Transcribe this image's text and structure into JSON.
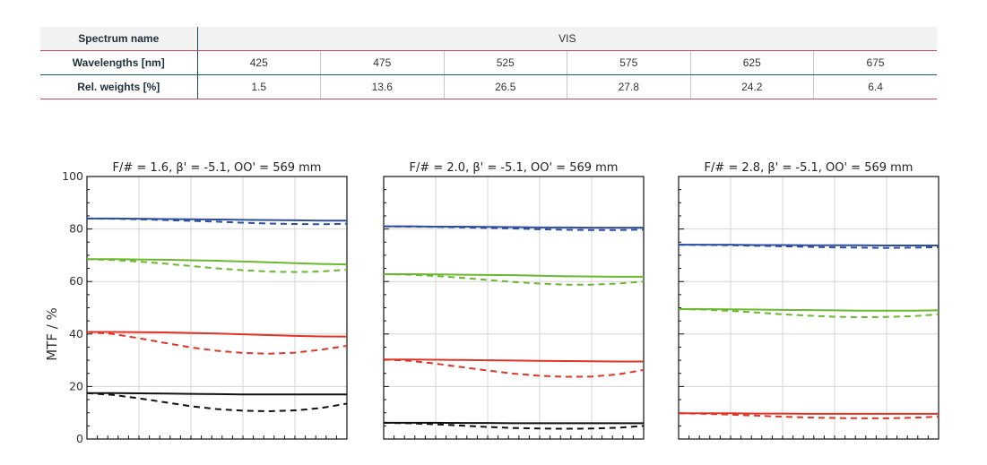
{
  "table": {
    "spectrum_header": "Spectrum name",
    "spectrum_value": "VIS",
    "wavelengths_header": "Wavelengths [nm]",
    "weights_header": "Rel. weights [%]",
    "wavelengths": [
      "425",
      "475",
      "525",
      "575",
      "625",
      "675"
    ],
    "weights": [
      "1.5",
      "13.6",
      "26.5",
      "27.8",
      "24.2",
      "6.4"
    ]
  },
  "chart_data": {
    "type": "line",
    "ylabel": "MTF / %",
    "ylim": [
      0,
      100
    ],
    "yticks": [
      "0",
      "20",
      "40",
      "60",
      "80",
      "100"
    ],
    "xlim": [
      0,
      1
    ],
    "grid": true,
    "series_colors": {
      "blue": "#2e4ea0",
      "green": "#6ab82e",
      "red": "#e03426",
      "black": "#111111"
    },
    "panels": [
      {
        "title": "F/# = 1.6, β' = -5.1, OO' = 569 mm",
        "x": [
          0,
          0.1,
          0.2,
          0.3,
          0.4,
          0.5,
          0.6,
          0.7,
          0.8,
          0.9,
          1.0
        ],
        "series": [
          {
            "color": "blue",
            "style": "solid",
            "values": [
              84.0,
              84.0,
              83.9,
              83.8,
              83.7,
              83.6,
              83.5,
              83.4,
              83.3,
              83.2,
              83.2
            ]
          },
          {
            "color": "blue",
            "style": "dashed",
            "values": [
              84.0,
              83.9,
              83.7,
              83.4,
              83.1,
              82.8,
              82.4,
              82.1,
              81.9,
              81.8,
              82.0
            ]
          },
          {
            "color": "green",
            "style": "solid",
            "values": [
              68.5,
              68.5,
              68.4,
              68.3,
              68.1,
              67.9,
              67.6,
              67.3,
              67.0,
              66.7,
              66.5
            ]
          },
          {
            "color": "green",
            "style": "dashed",
            "values": [
              68.5,
              68.2,
              67.6,
              66.8,
              65.9,
              65.0,
              64.3,
              63.8,
              63.6,
              63.8,
              64.5
            ]
          },
          {
            "color": "red",
            "style": "solid",
            "values": [
              40.8,
              40.8,
              40.7,
              40.6,
              40.4,
              40.2,
              39.9,
              39.6,
              39.3,
              39.1,
              39.0
            ]
          },
          {
            "color": "red",
            "style": "dashed",
            "values": [
              40.8,
              40.0,
              38.4,
              36.6,
              34.9,
              33.6,
              32.8,
              32.5,
              32.9,
              34.0,
              35.5
            ]
          },
          {
            "color": "black",
            "style": "solid",
            "values": [
              17.5,
              17.5,
              17.4,
              17.3,
              17.2,
              17.1,
              17.0,
              17.0,
              17.0,
              17.0,
              17.0
            ]
          },
          {
            "color": "black",
            "style": "dashed",
            "values": [
              17.5,
              16.8,
              15.5,
              14.0,
              12.5,
              11.4,
              10.8,
              10.6,
              10.9,
              11.8,
              13.5
            ]
          }
        ]
      },
      {
        "title": "F/# = 2.0, β' = -5.1, OO' = 569 mm",
        "x": [
          0,
          0.1,
          0.2,
          0.3,
          0.4,
          0.5,
          0.6,
          0.7,
          0.8,
          0.9,
          1.0
        ],
        "series": [
          {
            "color": "blue",
            "style": "solid",
            "values": [
              81.0,
              81.0,
              80.9,
              80.9,
              80.8,
              80.7,
              80.6,
              80.6,
              80.5,
              80.5,
              80.5
            ]
          },
          {
            "color": "blue",
            "style": "dashed",
            "values": [
              81.0,
              80.9,
              80.8,
              80.6,
              80.4,
              80.2,
              79.9,
              79.7,
              79.6,
              79.6,
              79.8
            ]
          },
          {
            "color": "green",
            "style": "solid",
            "values": [
              62.8,
              62.8,
              62.7,
              62.6,
              62.5,
              62.4,
              62.2,
              62.0,
              61.9,
              61.8,
              61.8
            ]
          },
          {
            "color": "green",
            "style": "dashed",
            "values": [
              62.8,
              62.6,
              62.1,
              61.4,
              60.6,
              59.8,
              59.2,
              58.8,
              58.8,
              59.2,
              60.0
            ]
          },
          {
            "color": "red",
            "style": "solid",
            "values": [
              30.3,
              30.3,
              30.2,
              30.1,
              30.0,
              29.9,
              29.8,
              29.7,
              29.6,
              29.5,
              29.5
            ]
          },
          {
            "color": "red",
            "style": "dashed",
            "values": [
              30.3,
              29.8,
              28.7,
              27.4,
              26.1,
              24.9,
              24.1,
              23.7,
              23.8,
              24.6,
              26.3
            ]
          },
          {
            "color": "black",
            "style": "solid",
            "values": [
              6.2,
              6.2,
              6.2,
              6.1,
              6.1,
              6.0,
              6.0,
              6.0,
              6.0,
              6.0,
              6.0
            ]
          },
          {
            "color": "black",
            "style": "dashed",
            "values": [
              6.2,
              6.0,
              5.6,
              5.1,
              4.6,
              4.2,
              4.0,
              3.9,
              4.0,
              4.3,
              5.0
            ]
          }
        ]
      },
      {
        "title": "F/# = 2.8, β' = -5.1, OO' = 569 mm",
        "x": [
          0,
          0.1,
          0.2,
          0.3,
          0.4,
          0.5,
          0.6,
          0.7,
          0.8,
          0.9,
          1.0
        ],
        "series": [
          {
            "color": "blue",
            "style": "solid",
            "values": [
              74.0,
              74.0,
              74.0,
              73.9,
              73.9,
              73.8,
              73.8,
              73.8,
              73.7,
              73.7,
              73.7
            ]
          },
          {
            "color": "blue",
            "style": "dashed",
            "values": [
              74.0,
              73.9,
              73.8,
              73.6,
              73.4,
              73.2,
              73.0,
              72.9,
              72.8,
              72.9,
              73.1
            ]
          },
          {
            "color": "green",
            "style": "solid",
            "values": [
              49.5,
              49.5,
              49.4,
              49.3,
              49.2,
              49.1,
              49.0,
              48.9,
              48.9,
              48.9,
              49.0
            ]
          },
          {
            "color": "green",
            "style": "dashed",
            "values": [
              49.5,
              49.3,
              48.8,
              48.2,
              47.5,
              47.0,
              46.6,
              46.4,
              46.5,
              46.8,
              47.5
            ]
          },
          {
            "color": "red",
            "style": "solid",
            "values": [
              9.8,
              9.8,
              9.8,
              9.7,
              9.7,
              9.6,
              9.6,
              9.6,
              9.6,
              9.6,
              9.6
            ]
          },
          {
            "color": "red",
            "style": "dashed",
            "values": [
              9.8,
              9.6,
              9.3,
              8.9,
              8.5,
              8.2,
              8.0,
              7.9,
              7.9,
              8.1,
              8.5
            ]
          }
        ]
      }
    ]
  }
}
